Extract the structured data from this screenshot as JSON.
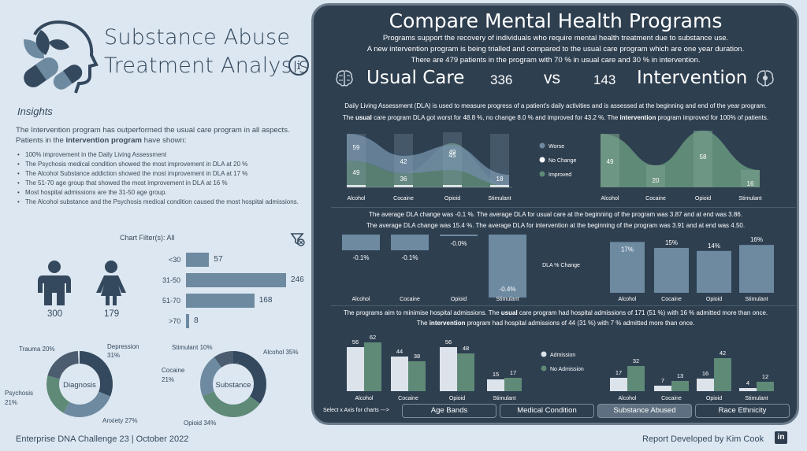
{
  "header": {
    "title_line1": "Substance Abuse",
    "title_line2": "Treatment Analysis",
    "info_icon": "i"
  },
  "insights": {
    "heading": "Insights",
    "paragraph_a": "The Intervention program has outperformed the usual care program in all aspects. Patients in the ",
    "paragraph_b": "intervention program",
    "paragraph_c": " have shown:",
    "bullets": [
      "100% improvement in the Daily Living Assessment",
      "The Psychosis medical condition showed the most improvement in DLA at 20 %",
      "The Alcohol Substance addiction showed the most improvement in DLA at 17 %",
      "The 51-70 age group that showed the most improvement in DLA at 16 %",
      "Most hospital admissions are the 31-50 age group.",
      "The Alcohol substance and the Psychosis medical condition caused the most hospital admissions."
    ]
  },
  "filters": {
    "label": "Chart Filter(s): All"
  },
  "gender": {
    "male": "300",
    "female": "179"
  },
  "age_bands": [
    {
      "label": "<30",
      "value": 57
    },
    {
      "label": "31-50",
      "value": 246
    },
    {
      "label": "51-70",
      "value": 168
    },
    {
      "label": ">70",
      "value": 8
    }
  ],
  "donuts": {
    "diagnosis": {
      "center": "Diagnosis",
      "labels": [
        "Trauma 20%",
        "Depression",
        "31%",
        "Psychosis",
        "21%",
        "Anxiety 27%"
      ]
    },
    "substance": {
      "center": "Substance",
      "labels": [
        "Stimulant 10%",
        "Alcohol 35%",
        "Cocaine",
        "21%",
        "Opioid 34%"
      ]
    }
  },
  "footer": {
    "left": "Enterprise DNA Challenge 23 | October 2022",
    "right": "Report Developed by Kim Cook",
    "linkedin": "in"
  },
  "panel": {
    "title": "Compare Mental Health Programs",
    "sub1": "Programs support the recovery of individuals who require mental health treatment due to substance use.",
    "sub2": "A new intervention program is being trialled and compared to the usual care program which are one year duration.",
    "sub3": "There are 479 patients in the program with 70 % in usual care and 30 % in intervention.",
    "usual_label": "Usual Care",
    "usual_count": "336",
    "vs": "vs",
    "intervention_count": "143",
    "intervention_label": "Intervention",
    "dla1": "Daily Living Assessment (DLA) is used to measure progress of a patient's daily activities and is assessed at the beginning and end of the year program.",
    "dla2a": "The ",
    "dla2b": "usual",
    "dla2c": " care program DLA got worst for 48.8 %, no change 8.0 % and improved for 43.2 %. The ",
    "dla2d": "intervention",
    "dla2e": " program improved for 100% of patients.",
    "avg1": "The average DLA change was -0.1 %. The average DLA for usual care at the beginning of the program was 3.87 and at end was 3.86.",
    "avg2": "The average DLA change was 15.4 %.  The average DLA for intervention at the beginning of the program was 3.91 and at end was 4.50.",
    "adm1a": "The programs aim to minimise hospital admissions.  The ",
    "adm1b": "usual",
    "adm1c": " care program had hospital admissions of 171 (51 %) with 16 % admitted more than once.",
    "adm2a": "The ",
    "adm2b": "intervention",
    "adm2c": " program had hospital admissions of 44 (31 %) with 7 % admitted more than once.",
    "select_label": "Select x Axis for charts --->",
    "nav": [
      "Age Bands",
      "Medical Condition",
      "Substance Abused",
      "Race Ethnicity"
    ],
    "dla_change_label": "DLA % Change"
  },
  "colors": {
    "worse": "#6d8aa1",
    "no_change": "#ffffff",
    "improved": "#5e8a77",
    "admission": "#dde3ea",
    "no_admission": "#5e8a77",
    "panel": "#2e3f50"
  },
  "chart_data": [
    {
      "type": "bar",
      "name_ref": "usual-dla-outcome",
      "categories": [
        "Alcohol",
        "Cocaine",
        "Opioid",
        "Stimulant"
      ],
      "series": [
        {
          "name": "Worse",
          "values": [
            59,
            42,
            45,
            18
          ]
        },
        {
          "name": "No Change",
          "values": [
            null,
            null,
            null,
            null
          ]
        },
        {
          "name": "Improved",
          "values": [
            49,
            36,
            49,
            null
          ]
        }
      ]
    },
    {
      "type": "bar",
      "name_ref": "intervention-dla-outcome",
      "categories": [
        "Alcohol",
        "Cocaine",
        "Opioid",
        "Stimulant"
      ],
      "series": [
        {
          "name": "Improved",
          "values": [
            49,
            20,
            58,
            16
          ]
        }
      ]
    },
    {
      "type": "bar",
      "name_ref": "usual-dla-change",
      "categories": [
        "Alcohol",
        "Cocaine",
        "Opioid",
        "Stimulant"
      ],
      "labels": [
        "-0.1%",
        "-0.1%",
        "-0.0%",
        "-0.4%"
      ],
      "values": [
        -0.1,
        -0.1,
        -0.0,
        -0.4
      ]
    },
    {
      "type": "bar",
      "name_ref": "intervention-dla-change",
      "categories": [
        "Alcohol",
        "Cocaine",
        "Opioid",
        "Stimulant"
      ],
      "labels": [
        "17%",
        "15%",
        "14%",
        "16%"
      ],
      "values": [
        17,
        15,
        14,
        16
      ]
    },
    {
      "type": "bar",
      "name_ref": "usual-admissions",
      "categories": [
        "Alcohol",
        "Cocaine",
        "Opioid",
        "Stimulant"
      ],
      "series": [
        {
          "name": "Admission",
          "values": [
            56,
            44,
            56,
            15
          ]
        },
        {
          "name": "No Admission",
          "values": [
            62,
            38,
            48,
            17
          ]
        }
      ]
    },
    {
      "type": "bar",
      "name_ref": "intervention-admissions",
      "categories": [
        "Alcohol",
        "Cocaine",
        "Opioid",
        "Stimulant"
      ],
      "series": [
        {
          "name": "Admission",
          "values": [
            17,
            7,
            16,
            4
          ]
        },
        {
          "name": "No Admission",
          "values": [
            32,
            13,
            42,
            12
          ]
        }
      ]
    }
  ],
  "legend1": [
    "Worse",
    "No Change",
    "Improved"
  ],
  "legend2": [
    "Admission",
    "No Admission"
  ]
}
